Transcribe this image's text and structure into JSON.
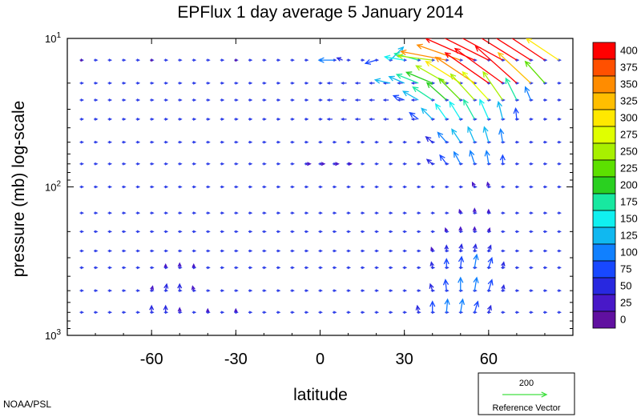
{
  "chart_data": {
    "type": "vector-field",
    "title": "EPFlux  1 day average  5 January   2014",
    "xlabel": "latitude",
    "ylabel": "pressure (mb)  log-scale",
    "x_ticks": [
      "-60",
      "-30",
      "0",
      "30",
      "60"
    ],
    "x_tick_values": [
      -60,
      -30,
      0,
      30,
      60
    ],
    "y_ticks": [
      {
        "base": "10",
        "exp": "1",
        "value": 10
      },
      {
        "base": "10",
        "exp": "2",
        "value": 100
      },
      {
        "base": "10",
        "exp": "3",
        "value": 1000
      }
    ],
    "xlim": [
      -90,
      90
    ],
    "ylim": [
      1000,
      10
    ],
    "y_scale": "log",
    "colorbar": {
      "labels": [
        "400",
        "375",
        "350",
        "325",
        "300",
        "275",
        "250",
        "225",
        "200",
        "175",
        "150",
        "125",
        "100",
        "75",
        "50",
        "25",
        "0"
      ],
      "colors": [
        "#ff0000",
        "#ff5000",
        "#ff8c00",
        "#ffbe00",
        "#ffe800",
        "#e0ff00",
        "#a8f000",
        "#5ce000",
        "#2ad020",
        "#18e8a0",
        "#10f0f0",
        "#10b8f0",
        "#1080ff",
        "#1848ff",
        "#2828e0",
        "#4818c8",
        "#6010a0"
      ]
    },
    "reference": {
      "value": "200",
      "label": "Reference Vector",
      "color": "#40e040"
    },
    "vectors": [
      {
        "lat": -85,
        "p": 14,
        "u": 0,
        "v": 0.5
      },
      {
        "lat": -60,
        "p": 14,
        "u": 0,
        "v": 0.5
      },
      {
        "lat": -30,
        "p": 14,
        "u": 0,
        "v": 0.5
      },
      {
        "lat": 5,
        "p": 14,
        "u": -14,
        "v": 0
      },
      {
        "lat": 8,
        "p": 14,
        "u": -5,
        "v": 2
      },
      {
        "lat": 20,
        "p": 14,
        "u": -10,
        "v": -3
      },
      {
        "lat": 25,
        "p": 14,
        "u": 12,
        "v": 12
      },
      {
        "lat": 30,
        "p": 14,
        "u": -18,
        "v": 3
      },
      {
        "lat": 35,
        "p": 14,
        "u": -22,
        "v": 6
      },
      {
        "lat": 40,
        "p": 14,
        "u": -32,
        "v": 4
      },
      {
        "lat": 45,
        "p": 14,
        "u": -42,
        "v": 8
      },
      {
        "lat": 50,
        "p": 14,
        "u": -40,
        "v": 14
      },
      {
        "lat": 55,
        "p": 14,
        "u": -45,
        "v": 20
      },
      {
        "lat": 60,
        "p": 14,
        "u": -50,
        "v": 25
      },
      {
        "lat": 65,
        "p": 14,
        "u": -55,
        "v": 30
      },
      {
        "lat": 70,
        "p": 14,
        "u": -45,
        "v": 28
      },
      {
        "lat": 75,
        "p": 14,
        "u": -55,
        "v": 35
      },
      {
        "lat": 80,
        "p": 14,
        "u": -60,
        "v": 40
      },
      {
        "lat": 85,
        "p": 14,
        "u": -30,
        "v": 20
      },
      {
        "lat": 25,
        "p": 20,
        "u": -14,
        "v": 3
      },
      {
        "lat": 30,
        "p": 20,
        "u": -14,
        "v": 6
      },
      {
        "lat": 35,
        "p": 20,
        "u": -20,
        "v": 8
      },
      {
        "lat": 40,
        "p": 20,
        "u": -24,
        "v": 10
      },
      {
        "lat": 45,
        "p": 20,
        "u": -28,
        "v": 16
      },
      {
        "lat": 50,
        "p": 20,
        "u": -32,
        "v": 20
      },
      {
        "lat": 55,
        "p": 20,
        "u": -36,
        "v": 24
      },
      {
        "lat": 60,
        "p": 20,
        "u": -40,
        "v": 28
      },
      {
        "lat": 65,
        "p": 20,
        "u": -44,
        "v": 32
      },
      {
        "lat": 70,
        "p": 20,
        "u": -38,
        "v": 34
      },
      {
        "lat": 75,
        "p": 20,
        "u": -30,
        "v": 28
      },
      {
        "lat": 80,
        "p": 20,
        "u": -18,
        "v": 20
      },
      {
        "lat": 30,
        "p": 26,
        "u": -10,
        "v": 4
      },
      {
        "lat": 35,
        "p": 26,
        "u": -14,
        "v": 8
      },
      {
        "lat": 40,
        "p": 26,
        "u": -18,
        "v": 12
      },
      {
        "lat": 45,
        "p": 26,
        "u": -18,
        "v": 16
      },
      {
        "lat": 50,
        "p": 26,
        "u": -20,
        "v": 20
      },
      {
        "lat": 55,
        "p": 26,
        "u": -22,
        "v": 24
      },
      {
        "lat": 60,
        "p": 26,
        "u": -24,
        "v": 26
      },
      {
        "lat": 65,
        "p": 26,
        "u": -18,
        "v": 26
      },
      {
        "lat": 70,
        "p": 26,
        "u": -10,
        "v": 20
      },
      {
        "lat": 75,
        "p": 26,
        "u": -5,
        "v": 12
      },
      {
        "lat": 35,
        "p": 35,
        "u": -8,
        "v": 6
      },
      {
        "lat": 40,
        "p": 35,
        "u": -10,
        "v": 10
      },
      {
        "lat": 45,
        "p": 35,
        "u": -10,
        "v": 14
      },
      {
        "lat": 50,
        "p": 35,
        "u": -10,
        "v": 16
      },
      {
        "lat": 55,
        "p": 35,
        "u": -10,
        "v": 18
      },
      {
        "lat": 60,
        "p": 35,
        "u": -8,
        "v": 18
      },
      {
        "lat": 65,
        "p": 35,
        "u": -4,
        "v": 16
      },
      {
        "lat": 70,
        "p": 35,
        "u": -1,
        "v": 10
      },
      {
        "lat": 40,
        "p": 50,
        "u": -6,
        "v": 5
      },
      {
        "lat": 45,
        "p": 50,
        "u": -8,
        "v": 9
      },
      {
        "lat": 50,
        "p": 50,
        "u": -8,
        "v": 12
      },
      {
        "lat": 55,
        "p": 50,
        "u": -6,
        "v": 14
      },
      {
        "lat": 60,
        "p": 50,
        "u": -4,
        "v": 14
      },
      {
        "lat": 65,
        "p": 50,
        "u": -2,
        "v": 12
      },
      {
        "lat": 40,
        "p": 70,
        "u": -5,
        "v": 4
      },
      {
        "lat": 45,
        "p": 70,
        "u": -6,
        "v": 8
      },
      {
        "lat": 50,
        "p": 70,
        "u": -6,
        "v": 11
      },
      {
        "lat": 55,
        "p": 70,
        "u": -4,
        "v": 12
      },
      {
        "lat": 60,
        "p": 70,
        "u": -2,
        "v": 12
      },
      {
        "lat": 65,
        "p": 70,
        "u": 0,
        "v": 8
      },
      {
        "lat": -5,
        "p": 70,
        "u": 4,
        "v": 0
      },
      {
        "lat": 0,
        "p": 70,
        "u": 4,
        "v": 0
      },
      {
        "lat": 5,
        "p": 70,
        "u": 4,
        "v": 0
      },
      {
        "lat": 10,
        "p": 70,
        "u": 3,
        "v": 0
      },
      {
        "lat": 55,
        "p": 100,
        "u": -2,
        "v": 4
      },
      {
        "lat": 60,
        "p": 100,
        "u": -1,
        "v": 4
      },
      {
        "lat": 50,
        "p": 150,
        "u": -1,
        "v": 3
      },
      {
        "lat": 55,
        "p": 150,
        "u": 0,
        "v": 4
      },
      {
        "lat": 60,
        "p": 150,
        "u": 0,
        "v": 3
      },
      {
        "lat": 45,
        "p": 200,
        "u": -1,
        "v": 3
      },
      {
        "lat": 50,
        "p": 200,
        "u": 0,
        "v": 4
      },
      {
        "lat": 55,
        "p": 200,
        "u": 0,
        "v": 4
      },
      {
        "lat": 60,
        "p": 200,
        "u": 1,
        "v": 3
      },
      {
        "lat": 40,
        "p": 270,
        "u": -1,
        "v": 3
      },
      {
        "lat": 45,
        "p": 270,
        "u": 0,
        "v": 5
      },
      {
        "lat": 50,
        "p": 270,
        "u": 1,
        "v": 6
      },
      {
        "lat": 55,
        "p": 270,
        "u": 1,
        "v": 6
      },
      {
        "lat": 60,
        "p": 270,
        "u": 2,
        "v": 5
      },
      {
        "lat": -55,
        "p": 350,
        "u": 0,
        "v": 3
      },
      {
        "lat": -50,
        "p": 350,
        "u": 0,
        "v": 4
      },
      {
        "lat": -45,
        "p": 350,
        "u": 0,
        "v": 3
      },
      {
        "lat": 40,
        "p": 350,
        "u": -1,
        "v": 5
      },
      {
        "lat": 45,
        "p": 350,
        "u": 0,
        "v": 8
      },
      {
        "lat": 50,
        "p": 350,
        "u": 1,
        "v": 10
      },
      {
        "lat": 55,
        "p": 350,
        "u": 2,
        "v": 12
      },
      {
        "lat": 60,
        "p": 350,
        "u": 3,
        "v": 9
      },
      {
        "lat": 65,
        "p": 350,
        "u": 1,
        "v": 5
      },
      {
        "lat": -60,
        "p": 500,
        "u": 1,
        "v": 4
      },
      {
        "lat": -55,
        "p": 500,
        "u": 1,
        "v": 6
      },
      {
        "lat": -50,
        "p": 500,
        "u": 0,
        "v": 6
      },
      {
        "lat": -45,
        "p": 500,
        "u": -1,
        "v": 4
      },
      {
        "lat": 40,
        "p": 500,
        "u": -2,
        "v": 6
      },
      {
        "lat": 45,
        "p": 500,
        "u": -1,
        "v": 10
      },
      {
        "lat": 50,
        "p": 500,
        "u": 0,
        "v": 12
      },
      {
        "lat": 55,
        "p": 500,
        "u": 2,
        "v": 12
      },
      {
        "lat": 60,
        "p": 500,
        "u": 3,
        "v": 10
      },
      {
        "lat": 65,
        "p": 500,
        "u": 1,
        "v": 5
      },
      {
        "lat": -60,
        "p": 700,
        "u": 0,
        "v": 6
      },
      {
        "lat": -55,
        "p": 700,
        "u": 0,
        "v": 6
      },
      {
        "lat": -50,
        "p": 700,
        "u": 0,
        "v": 4
      },
      {
        "lat": -40,
        "p": 700,
        "u": 0,
        "v": 3
      },
      {
        "lat": -30,
        "p": 700,
        "u": 0,
        "v": 3
      },
      {
        "lat": 35,
        "p": 700,
        "u": -1,
        "v": 6
      },
      {
        "lat": 40,
        "p": 700,
        "u": 0,
        "v": 10
      },
      {
        "lat": 45,
        "p": 700,
        "u": 1,
        "v": 12
      },
      {
        "lat": 50,
        "p": 700,
        "u": 2,
        "v": 12
      },
      {
        "lat": 55,
        "p": 700,
        "u": 3,
        "v": 10
      },
      {
        "lat": 60,
        "p": 700,
        "u": 2,
        "v": 6
      }
    ]
  },
  "footer": {
    "credit": "NOAA/PSL"
  }
}
